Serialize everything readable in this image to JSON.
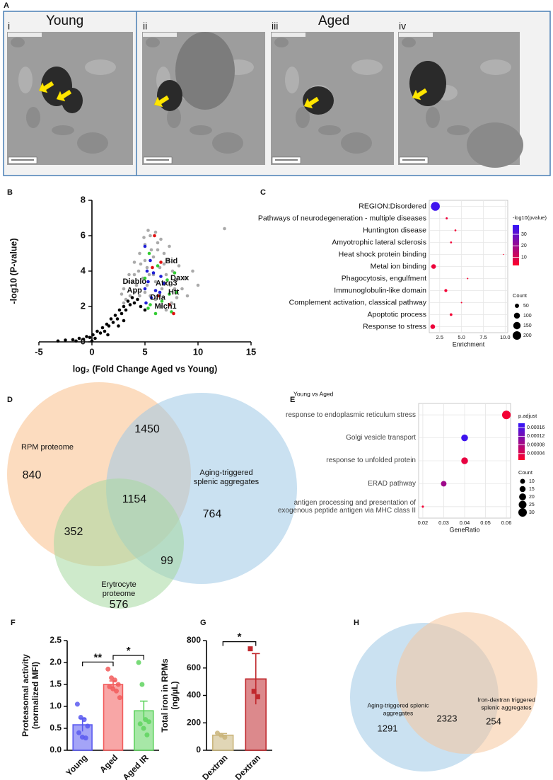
{
  "panel_a": {
    "panel": "A",
    "titles": [
      "Young",
      "Aged"
    ],
    "images": [
      "i",
      "ii",
      "iii",
      "iv"
    ]
  },
  "chart_data": [
    {
      "panel": "B",
      "type": "scatter",
      "xlabel": "log₂ (Fold Change Aged vs Young)",
      "ylabel": "-log10 (P-value)",
      "xlim": [
        -5,
        15
      ],
      "xticks": [
        -5,
        0,
        5,
        10,
        15
      ],
      "ylim": [
        0,
        8
      ],
      "yticks": [
        0,
        2,
        4,
        6,
        8
      ],
      "series": [
        {
          "color": "#aaaaaa",
          "x": [
            3.0,
            3.5,
            4.0,
            4.5,
            5.0,
            5.5,
            6.0,
            6.5,
            4.2,
            4.8,
            5.2,
            5.8,
            6.2,
            6.8,
            7.2,
            7.6,
            8.0,
            8.5,
            8.0,
            7.5,
            7.0,
            6.5,
            6.0,
            5.5,
            5.0,
            4.5,
            4.0,
            3.6,
            3.2,
            2.8,
            3.8,
            4.4,
            5.0,
            5.6,
            6.2,
            6.8,
            7.0,
            7.4,
            6.6,
            6.0,
            5.4,
            4.6,
            4.0,
            3.4,
            5.2,
            5.8,
            6.4,
            7.8,
            8.8,
            9.5,
            10.0,
            9.0,
            12.5,
            4.9,
            5.3,
            3.0,
            8.2,
            7.3
          ],
          "y": [
            3.0,
            3.8,
            4.5,
            5.0,
            5.5,
            6.0,
            6.2,
            5.8,
            3.2,
            3.6,
            4.2,
            4.8,
            5.2,
            5.0,
            4.6,
            4.0,
            3.5,
            3.0,
            2.5,
            2.2,
            1.8,
            2.0,
            2.4,
            2.6,
            2.8,
            2.6,
            2.8,
            2.6,
            2.4,
            2.7,
            3.4,
            4.0,
            4.6,
            5.2,
            5.6,
            4.4,
            3.8,
            3.2,
            3.0,
            3.4,
            3.8,
            4.4,
            3.8,
            3.4,
            3.2,
            3.8,
            4.2,
            3.0,
            3.6,
            4.0,
            3.2,
            2.6,
            6.4,
            5.9,
            6.3,
            2.2,
            4.3,
            5.4
          ]
        },
        {
          "color": "#000000",
          "x": [
            -3.2,
            -2.5,
            -1.8,
            -1.2,
            -0.8,
            -0.5,
            -0.2,
            0.1,
            0.3,
            0.5,
            0.8,
            1.0,
            1.2,
            1.4,
            1.6,
            1.8,
            2.0,
            2.2,
            2.4,
            2.6,
            2.8,
            3.0,
            3.2,
            3.4,
            3.6,
            3.8,
            4.0,
            4.3,
            4.6,
            5.0,
            1.5,
            2.5,
            0.0,
            -1.5,
            3.0
          ],
          "y": [
            0.05,
            0.1,
            0.12,
            0.2,
            0.15,
            0.3,
            0.25,
            0.4,
            0.2,
            0.6,
            0.5,
            0.8,
            0.6,
            1.0,
            0.9,
            1.3,
            1.1,
            1.5,
            1.3,
            1.8,
            1.6,
            2.0,
            1.8,
            2.3,
            2.1,
            2.5,
            2.2,
            2.4,
            2.0,
            1.8,
            0.4,
            0.9,
            0.05,
            0.05,
            1.2
          ]
        },
        {
          "color": "#1f1fd6",
          "x": [
            5.0,
            5.5,
            5.2,
            5.8,
            6.5,
            5.3,
            5.0,
            6.0,
            5.6,
            6.4,
            5.1,
            6.8
          ],
          "y": [
            5.4,
            4.6,
            4.0,
            3.9,
            3.7,
            3.4,
            3.0,
            2.9,
            2.5,
            2.8,
            2.2,
            3.3
          ]
        },
        {
          "color": "#33cc33",
          "x": [
            5.4,
            6.2,
            5.0,
            7.1,
            7.8,
            5.5,
            6.6,
            7.3,
            5.3,
            7.5,
            6.0,
            8.0
          ],
          "y": [
            5.0,
            4.3,
            3.6,
            3.5,
            3.9,
            2.1,
            2.3,
            2.7,
            1.9,
            1.7,
            1.6,
            2.8
          ]
        },
        {
          "color": "#e01010",
          "x": [
            5.9,
            6.5,
            5.7,
            7.3,
            7.7,
            6.3
          ],
          "y": [
            6.0,
            4.5,
            4.2,
            2.1,
            1.6,
            2.6
          ]
        }
      ],
      "annotation_color": "#8e24aa",
      "annotations": [
        {
          "text": "Bid",
          "x": 6.9,
          "y": 4.55
        },
        {
          "text": "Daxx",
          "x": 7.4,
          "y": 3.6
        },
        {
          "text": "Atxn3",
          "x": 6.0,
          "y": 3.3
        },
        {
          "text": "Diablo",
          "x": 2.9,
          "y": 3.4
        },
        {
          "text": "App",
          "x": 3.3,
          "y": 2.9
        },
        {
          "text": "Htt",
          "x": 7.2,
          "y": 2.8
        },
        {
          "text": "Dffa",
          "x": 5.5,
          "y": 2.5
        },
        {
          "text": "Mlch1",
          "x": 5.9,
          "y": 2.0
        }
      ]
    },
    {
      "panel": "C",
      "type": "dot",
      "categories": [
        "REGION:Disordered",
        "Pathways of neurodegeneration - multiple diseases",
        "Huntington disease",
        "Amyotrophic lateral sclerosis",
        "Heat shock protein binding",
        "Metal ion binding",
        "Phagocytosis, engulfment",
        "Immunoglobulin-like domain",
        "Complement activation, classical pathway",
        "Apoptotic process",
        "Response to stress"
      ],
      "values": [
        2.0,
        3.3,
        4.3,
        3.8,
        9.8,
        1.8,
        5.7,
        3.2,
        5.0,
        3.8,
        1.7
      ],
      "counts": [
        220,
        12,
        10,
        10,
        3,
        60,
        6,
        25,
        6,
        20,
        60
      ],
      "color_values": [
        36,
        6,
        5,
        5,
        3,
        6,
        4,
        5,
        4,
        5,
        6
      ],
      "xlabel": "Enrichment",
      "xlim": [
        1.3,
        10.3
      ],
      "xticks": [
        2.5,
        {
          "value": 5,
          "label": "5.0"
        },
        7.5,
        {
          "value": 10,
          "label": "10.0"
        }
      ],
      "grid": true,
      "color_title": "-log10(pvalue)",
      "colorlim": [
        3,
        38
      ],
      "color_ticks": [
        10,
        20,
        30
      ],
      "size_title": "Count",
      "size_ticks": [
        50,
        100,
        150,
        200
      ]
    },
    {
      "panel": "D",
      "type": "venn",
      "sets": [
        {
          "name": [
            "RPM proteome"
          ],
          "color": "#f9c08a",
          "label_color": "#e8711a"
        },
        {
          "name": [
            "Aging-triggered",
            "splenic aggregates"
          ],
          "color": "#9ec9e6",
          "label_color": "#2e75b6"
        },
        {
          "name": [
            "Erytrocyte",
            "proteome"
          ],
          "color": "#a6d9a0",
          "label_color": "#3a9e3a"
        }
      ],
      "values": [
        840,
        1450,
        764,
        352,
        1154,
        99,
        576
      ]
    },
    {
      "panel": "E",
      "type": "dot",
      "title": "Young vs Aged",
      "categories": [
        "response to endoplasmic reticulum stress",
        "Golgi vesicle transport",
        "response to unfolded protein",
        "ERAD pathway",
        "antigen processing and presentation of exogenous peptide antigen via MHC class II"
      ],
      "values": [
        0.06,
        0.04,
        0.04,
        0.03,
        0.02
      ],
      "counts": [
        31,
        19,
        19,
        13,
        2
      ],
      "color_values": [
        2e-05,
        0.00017,
        3e-05,
        9e-05,
        2e-05
      ],
      "xlabel": "GeneRatio",
      "xlim": [
        0.018,
        0.062
      ],
      "xticks": [
        0.02,
        0.03,
        0.04,
        0.05,
        0.06
      ],
      "grid": true,
      "color_title": "p.adjust",
      "colorlim": [
        1e-05,
        0.00018
      ],
      "color_ticks": [
        4e-05,
        8e-05,
        0.00012,
        0.00016
      ],
      "size_title": "Count",
      "size_ticks": [
        10,
        15,
        20,
        25,
        30
      ]
    },
    {
      "panel": "F",
      "type": "bar",
      "categories": [
        "Young",
        "Aged",
        "Aged IR"
      ],
      "values": [
        0.58,
        1.5,
        0.9
      ],
      "errors": [
        0.15,
        0.08,
        0.22
      ],
      "colors": [
        "#5a5af0",
        "#f25c5c",
        "#5fd35f"
      ],
      "points": [
        [
          1.05,
          0.75,
          0.7,
          0.55,
          0.4,
          0.3,
          0.28
        ],
        [
          1.85,
          1.65,
          1.6,
          1.5,
          1.45,
          1.4,
          1.35,
          1.2
        ],
        [
          2.0,
          1.5,
          0.7,
          0.65,
          0.6,
          0.5,
          0.35
        ]
      ],
      "ylabel": [
        "Proteasomal activity",
        "(normalized MFI)"
      ],
      "ylim": [
        0,
        2.5
      ],
      "yticks": [
        {
          "value": 0,
          "label": "0.0"
        },
        0.5,
        {
          "value": 1,
          "label": "1.0"
        },
        1.5,
        {
          "value": 2,
          "label": "2.0"
        },
        2.5
      ],
      "significance": [
        {
          "label": "**",
          "groups": [
            "Young",
            "Aged"
          ]
        },
        {
          "label": "*",
          "groups": [
            "Aged",
            "Aged IR"
          ]
        }
      ]
    },
    {
      "panel": "G",
      "type": "bar",
      "categories": [
        "Dextran",
        "Iron Dextran"
      ],
      "values": [
        110,
        520
      ],
      "errors": [
        12,
        185
      ],
      "colors": [
        "#c9b47a",
        "#c0282d"
      ],
      "markers": [
        "circle",
        "square"
      ],
      "points": [
        [
          125,
          110,
          95
        ],
        [
          740,
          430,
          390
        ]
      ],
      "ylabel": [
        "Total iron in RPMs",
        "(ng/µL)"
      ],
      "ylim": [
        0,
        800
      ],
      "yticks": [
        0,
        200,
        400,
        600,
        800
      ],
      "significance": [
        {
          "label": "*",
          "groups": [
            "Dextran",
            "Iron Dextran"
          ]
        }
      ]
    },
    {
      "panel": "H",
      "type": "venn",
      "sets": [
        {
          "name": [
            "Aging-triggered splenic",
            "aggregates"
          ],
          "color": "#9ec9e6",
          "label_color": "#2e75b6"
        },
        {
          "name": [
            "Iron-dextran triggered",
            "splenic aggregates"
          ],
          "color": "#f6c79c",
          "label_color": "#e8711a"
        }
      ],
      "values": [
        1291,
        2323,
        254
      ]
    }
  ]
}
